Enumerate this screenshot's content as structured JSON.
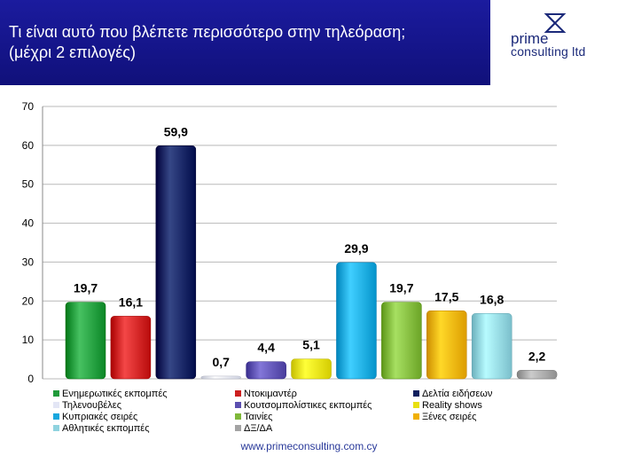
{
  "header": {
    "title_line1": "Τι είναι αυτό που βλέπετε περισσότερο στην τηλεόραση;",
    "title_line2": "(μέχρι 2 επιλογές)"
  },
  "logo": {
    "word1": "prime",
    "word2": "consulting ltd"
  },
  "footer": {
    "url": "www.primeconsulting.com.cy"
  },
  "chart_data": {
    "type": "bar",
    "ylim": [
      0,
      70
    ],
    "yticks": [
      0,
      10,
      20,
      30,
      40,
      50,
      60,
      70
    ],
    "grid": true,
    "legend_position": "bottom",
    "series": [
      {
        "name": "Ενημερωτικές εκπομπές",
        "value": 19.7,
        "label": "19,7",
        "color": "#1f9a3a"
      },
      {
        "name": "Ντοκιμαντέρ",
        "value": 16.1,
        "label": "16,1",
        "color": "#cc1f1f"
      },
      {
        "name": "Δελτία ειδήσεων",
        "value": 59.9,
        "label": "59,9",
        "color": "#0e1f5e"
      },
      {
        "name": "Τηλενουβέλες",
        "value": 0.7,
        "label": "0,7",
        "color": "#e3e6f5"
      },
      {
        "name": "Κουτσομπολίστικες εκπομπές",
        "value": 4.4,
        "label": "4,4",
        "color": "#5b4fb0"
      },
      {
        "name": "Reality shows",
        "value": 5.1,
        "label": "5,1",
        "color": "#e8e010"
      },
      {
        "name": "Κυπριακές σειρές",
        "value": 29.9,
        "label": "29,9",
        "color": "#18a7de"
      },
      {
        "name": "Ταινίες",
        "value": 19.7,
        "label": "19,7",
        "color": "#7fb83a"
      },
      {
        "name": "Ξένες σειρές",
        "value": 17.5,
        "label": "17,5",
        "color": "#f0b000"
      },
      {
        "name": "Αθλητικές εκπομπές",
        "value": 16.8,
        "label": "16,8",
        "color": "#8fd3df"
      },
      {
        "name": "ΔΞ/ΔΑ",
        "value": 2.2,
        "label": "2,2",
        "color": "#a3a3a3"
      }
    ]
  }
}
